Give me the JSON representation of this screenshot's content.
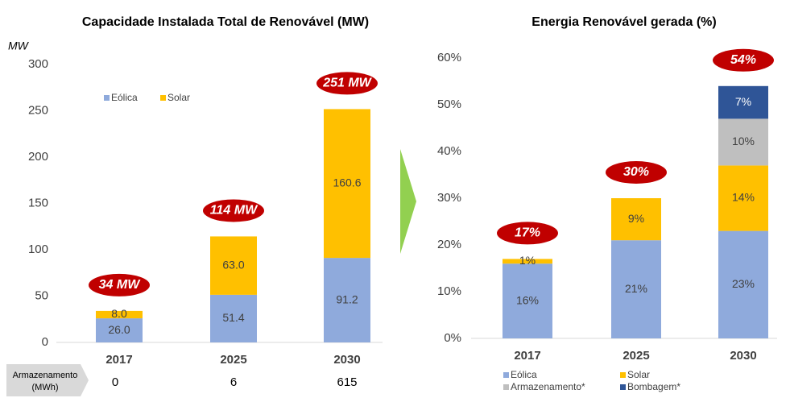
{
  "chart_data": [
    {
      "type": "stacked_bar",
      "title": "Capacidade Instalada Total de Renovável (MW)",
      "y_label": "MW",
      "categories": [
        "2017",
        "2025",
        "2030"
      ],
      "series": [
        {
          "name": "Eólica",
          "color": "#8faadc",
          "values": [
            26.0,
            51.4,
            91.2
          ],
          "value_labels": [
            "26.0",
            "51.4",
            "91.2"
          ]
        },
        {
          "name": "Solar",
          "color": "#ffc000",
          "values": [
            8.0,
            63.0,
            160.6
          ],
          "value_labels": [
            "8.0",
            "63.0",
            "160.6"
          ]
        }
      ],
      "total_labels": [
        "34 MW",
        "114 MW",
        "251 MW"
      ],
      "ylim": [
        0,
        300
      ],
      "yticks": [
        0,
        50,
        100,
        150,
        200,
        250,
        300
      ],
      "legend": "top-left",
      "storage": {
        "label": [
          "Armazenamento",
          "(MWh)"
        ],
        "values": [
          0,
          6,
          615
        ]
      }
    },
    {
      "type": "stacked_bar",
      "title": "Energia Renovável gerada (%)",
      "categories": [
        "2017",
        "2025",
        "2030"
      ],
      "series": [
        {
          "name": "Eólica",
          "color": "#8faadc",
          "values": [
            16,
            21,
            23
          ],
          "value_labels": [
            "16%",
            "21%",
            "23%"
          ]
        },
        {
          "name": "Solar",
          "color": "#ffc000",
          "values": [
            1,
            9,
            14
          ],
          "value_labels": [
            "1%",
            "9%",
            "14%"
          ]
        },
        {
          "name": "Armazenamento*",
          "color": "#bfbfbf",
          "values": [
            null,
            null,
            10
          ],
          "value_labels": [
            null,
            null,
            "10%"
          ]
        },
        {
          "name": "Bombagem*",
          "color": "#2f5597",
          "values": [
            null,
            null,
            7
          ],
          "value_labels": [
            null,
            null,
            "7%"
          ]
        }
      ],
      "total_labels": [
        "17%",
        "30%",
        "54%"
      ],
      "ylim": [
        0,
        60
      ],
      "yticks": [
        {
          "value": 0,
          "label": "0%"
        },
        {
          "value": 10,
          "label": "10%"
        },
        {
          "value": 20,
          "label": "20%"
        },
        {
          "value": 30,
          "label": "30%"
        },
        {
          "value": 40,
          "label": "40%"
        },
        {
          "value": 50,
          "label": "50%"
        },
        {
          "value": 60,
          "label": "60%"
        }
      ],
      "legend": "bottom"
    }
  ]
}
